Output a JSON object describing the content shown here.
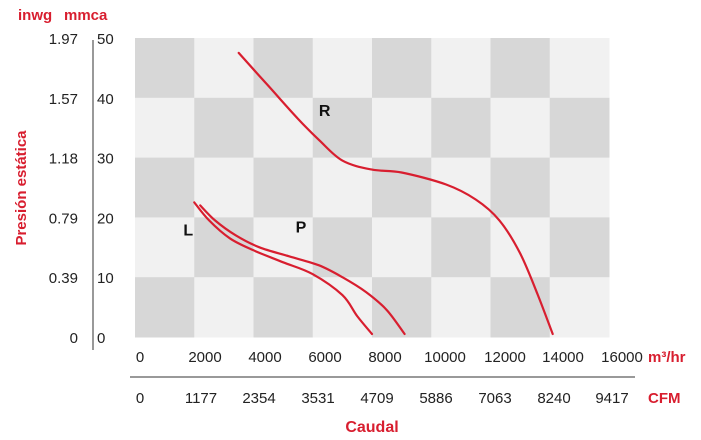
{
  "chart_data": {
    "type": "line",
    "title": "",
    "ylabel": "Presión estática",
    "xlabel": "Caudal",
    "y_units": [
      "inwg",
      "mmca"
    ],
    "x_units": [
      "m³/hr",
      "CFM"
    ],
    "y_ticks_mmca": [
      "0",
      "10",
      "20",
      "30",
      "40",
      "50"
    ],
    "y_ticks_inwg": [
      "0",
      "0.39",
      "0.79",
      "1.18",
      "1.57",
      "1.97"
    ],
    "x_ticks_m3hr": [
      "0",
      "2000",
      "4000",
      "6000",
      "8000",
      "10000",
      "12000",
      "14000",
      "16000"
    ],
    "x_ticks_cfm": [
      "0",
      "1177",
      "2354",
      "3531",
      "4709",
      "5886",
      "7063",
      "8240",
      "9417"
    ],
    "xlim": [
      0,
      16000
    ],
    "ylim": [
      0,
      50
    ],
    "grid": true,
    "colors": {
      "accent": "#d81e2f",
      "grid_dark": "#d7d7d7",
      "grid_light": "#f1f1f1",
      "curve": "#d81e2f"
    },
    "series": [
      {
        "name": "R",
        "x": [
          3500,
          4500,
          5500,
          6200,
          7000,
          8000,
          9000,
          10500,
          11500,
          12300,
          13000,
          13600,
          14100
        ],
        "y": [
          47.5,
          42,
          36.5,
          33,
          29.5,
          28,
          27.5,
          25.5,
          23,
          19.5,
          14,
          7,
          0.5
        ]
      },
      {
        "name": "L",
        "x": [
          2000,
          2500,
          3200,
          4000,
          5000,
          6000,
          7000,
          7500,
          8000
        ],
        "y": [
          22.5,
          19.5,
          16.5,
          14.5,
          12.5,
          10.5,
          7,
          3.5,
          0.5
        ]
      },
      {
        "name": "P",
        "x": [
          2200,
          2700,
          3400,
          4200,
          5200,
          6200,
          7000,
          7800,
          8500,
          9100
        ],
        "y": [
          22,
          19.5,
          17,
          15,
          13.5,
          12,
          10,
          7.5,
          4.5,
          0.5
        ]
      }
    ],
    "series_labels": [
      {
        "text": "R",
        "x": 6400,
        "y": 38
      },
      {
        "text": "L",
        "x": 1800,
        "y": 18
      },
      {
        "text": "P",
        "x": 5600,
        "y": 18.5
      }
    ]
  }
}
